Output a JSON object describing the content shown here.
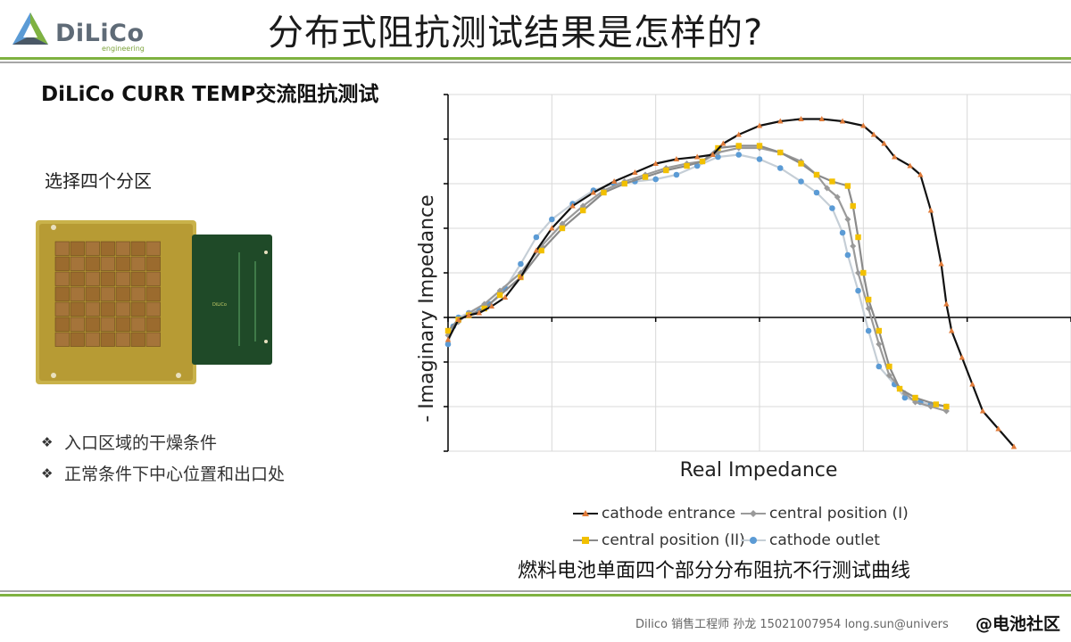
{
  "header": {
    "logo_text": "DiLiCo",
    "logo_sub": "engineering",
    "title": "分布式阻抗测试结果是怎样的?"
  },
  "left": {
    "subtitle": "DiLiCo CURR TEMP交流阻抗测试",
    "zone_label": "选择四个分区",
    "bullets": [
      "入口区域的干燥条件",
      "正常条件下中心位置和出口处"
    ],
    "board_label": "DiLiCo"
  },
  "chart_data": {
    "type": "line",
    "xlabel": "Real Impedance",
    "ylabel": "- Imaginary Impedance",
    "xlim": [
      0,
      6
    ],
    "ylim": [
      -3,
      5
    ],
    "grid": true,
    "legend_position": "bottom",
    "series": [
      {
        "name": "cathode entrance",
        "color": "#111111",
        "marker_color": "#e07b39",
        "marker": "triangle",
        "points": [
          [
            0,
            -0.5
          ],
          [
            0.1,
            -0.05
          ],
          [
            0.2,
            0.05
          ],
          [
            0.3,
            0.1
          ],
          [
            0.42,
            0.25
          ],
          [
            0.55,
            0.45
          ],
          [
            0.7,
            0.9
          ],
          [
            0.85,
            1.5
          ],
          [
            1.0,
            2.0
          ],
          [
            1.2,
            2.5
          ],
          [
            1.4,
            2.8
          ],
          [
            1.6,
            3.05
          ],
          [
            1.8,
            3.25
          ],
          [
            2.0,
            3.45
          ],
          [
            2.2,
            3.55
          ],
          [
            2.4,
            3.6
          ],
          [
            2.55,
            3.65
          ],
          [
            2.65,
            3.9
          ],
          [
            2.8,
            4.1
          ],
          [
            3.0,
            4.3
          ],
          [
            3.2,
            4.4
          ],
          [
            3.4,
            4.45
          ],
          [
            3.6,
            4.45
          ],
          [
            3.8,
            4.4
          ],
          [
            4.0,
            4.3
          ],
          [
            4.1,
            4.1
          ],
          [
            4.2,
            3.9
          ],
          [
            4.3,
            3.6
          ],
          [
            4.45,
            3.4
          ],
          [
            4.55,
            3.2
          ],
          [
            4.65,
            2.4
          ],
          [
            4.75,
            1.2
          ],
          [
            4.8,
            0.3
          ],
          [
            4.85,
            -0.3
          ],
          [
            4.95,
            -0.9
          ],
          [
            5.05,
            -1.5
          ],
          [
            5.15,
            -2.1
          ],
          [
            5.3,
            -2.5
          ],
          [
            5.45,
            -2.9
          ]
        ]
      },
      {
        "name": "central position (I)",
        "color": "#9a9a9a",
        "marker_color": "#9a9a9a",
        "marker": "diamond",
        "points": [
          [
            0,
            -0.4
          ],
          [
            0.1,
            -0.1
          ],
          [
            0.2,
            0.1
          ],
          [
            0.35,
            0.3
          ],
          [
            0.5,
            0.6
          ],
          [
            0.7,
            1.0
          ],
          [
            0.9,
            1.6
          ],
          [
            1.1,
            2.1
          ],
          [
            1.3,
            2.5
          ],
          [
            1.5,
            2.85
          ],
          [
            1.7,
            3.05
          ],
          [
            1.9,
            3.2
          ],
          [
            2.1,
            3.35
          ],
          [
            2.3,
            3.45
          ],
          [
            2.45,
            3.5
          ],
          [
            2.6,
            3.7
          ],
          [
            2.8,
            3.8
          ],
          [
            3.0,
            3.8
          ],
          [
            3.2,
            3.7
          ],
          [
            3.4,
            3.5
          ],
          [
            3.55,
            3.2
          ],
          [
            3.65,
            2.9
          ],
          [
            3.75,
            2.7
          ],
          [
            3.85,
            2.2
          ],
          [
            3.9,
            1.6
          ],
          [
            3.95,
            1.0
          ],
          [
            4.05,
            0.2
          ],
          [
            4.15,
            -0.6
          ],
          [
            4.25,
            -1.3
          ],
          [
            4.4,
            -1.7
          ],
          [
            4.5,
            -1.9
          ],
          [
            4.65,
            -2.0
          ],
          [
            4.8,
            -2.1
          ]
        ]
      },
      {
        "name": "central position (II)",
        "color": "#8a8a8a",
        "marker_color": "#f2c000",
        "marker": "square",
        "points": [
          [
            0,
            -0.3
          ],
          [
            0.1,
            -0.05
          ],
          [
            0.2,
            0.05
          ],
          [
            0.35,
            0.2
          ],
          [
            0.5,
            0.5
          ],
          [
            0.7,
            0.9
          ],
          [
            0.9,
            1.5
          ],
          [
            1.1,
            2.0
          ],
          [
            1.3,
            2.4
          ],
          [
            1.5,
            2.8
          ],
          [
            1.7,
            3.0
          ],
          [
            1.9,
            3.15
          ],
          [
            2.1,
            3.3
          ],
          [
            2.3,
            3.4
          ],
          [
            2.45,
            3.5
          ],
          [
            2.6,
            3.8
          ],
          [
            2.8,
            3.85
          ],
          [
            3.0,
            3.85
          ],
          [
            3.2,
            3.7
          ],
          [
            3.4,
            3.45
          ],
          [
            3.55,
            3.2
          ],
          [
            3.7,
            3.05
          ],
          [
            3.85,
            2.95
          ],
          [
            3.9,
            2.5
          ],
          [
            3.95,
            1.8
          ],
          [
            4.0,
            1.0
          ],
          [
            4.05,
            0.4
          ],
          [
            4.15,
            -0.3
          ],
          [
            4.25,
            -1.1
          ],
          [
            4.35,
            -1.6
          ],
          [
            4.5,
            -1.8
          ],
          [
            4.7,
            -1.95
          ],
          [
            4.8,
            -2.0
          ]
        ]
      },
      {
        "name": "cathode outlet",
        "color": "#c5ced6",
        "marker_color": "#5b9bd5",
        "marker": "circle",
        "points": [
          [
            0,
            -0.6
          ],
          [
            0.05,
            -0.2
          ],
          [
            0.1,
            0
          ],
          [
            0.2,
            0.1
          ],
          [
            0.3,
            0.15
          ],
          [
            0.4,
            0.3
          ],
          [
            0.55,
            0.65
          ],
          [
            0.7,
            1.2
          ],
          [
            0.85,
            1.8
          ],
          [
            1.0,
            2.2
          ],
          [
            1.2,
            2.55
          ],
          [
            1.4,
            2.85
          ],
          [
            1.6,
            3.0
          ],
          [
            1.8,
            3.05
          ],
          [
            2.0,
            3.1
          ],
          [
            2.2,
            3.2
          ],
          [
            2.4,
            3.4
          ],
          [
            2.6,
            3.6
          ],
          [
            2.8,
            3.65
          ],
          [
            3.0,
            3.55
          ],
          [
            3.2,
            3.35
          ],
          [
            3.4,
            3.05
          ],
          [
            3.55,
            2.8
          ],
          [
            3.7,
            2.45
          ],
          [
            3.8,
            1.9
          ],
          [
            3.85,
            1.4
          ],
          [
            3.95,
            0.6
          ],
          [
            4.05,
            -0.3
          ],
          [
            4.15,
            -1.1
          ],
          [
            4.3,
            -1.5
          ],
          [
            4.4,
            -1.8
          ],
          [
            4.55,
            -1.9
          ],
          [
            4.65,
            -1.95
          ],
          [
            4.8,
            -2.0
          ]
        ]
      }
    ]
  },
  "caption": "燃料电池单面四个部分分布阻抗不行测试曲线",
  "footer": "Dilico 销售工程师  孙龙  15021007954     long.sun@univers",
  "watermark": "@电池社区",
  "colors": {
    "accent_green": "#7fb241",
    "rule_gray": "#a6a6a6"
  }
}
